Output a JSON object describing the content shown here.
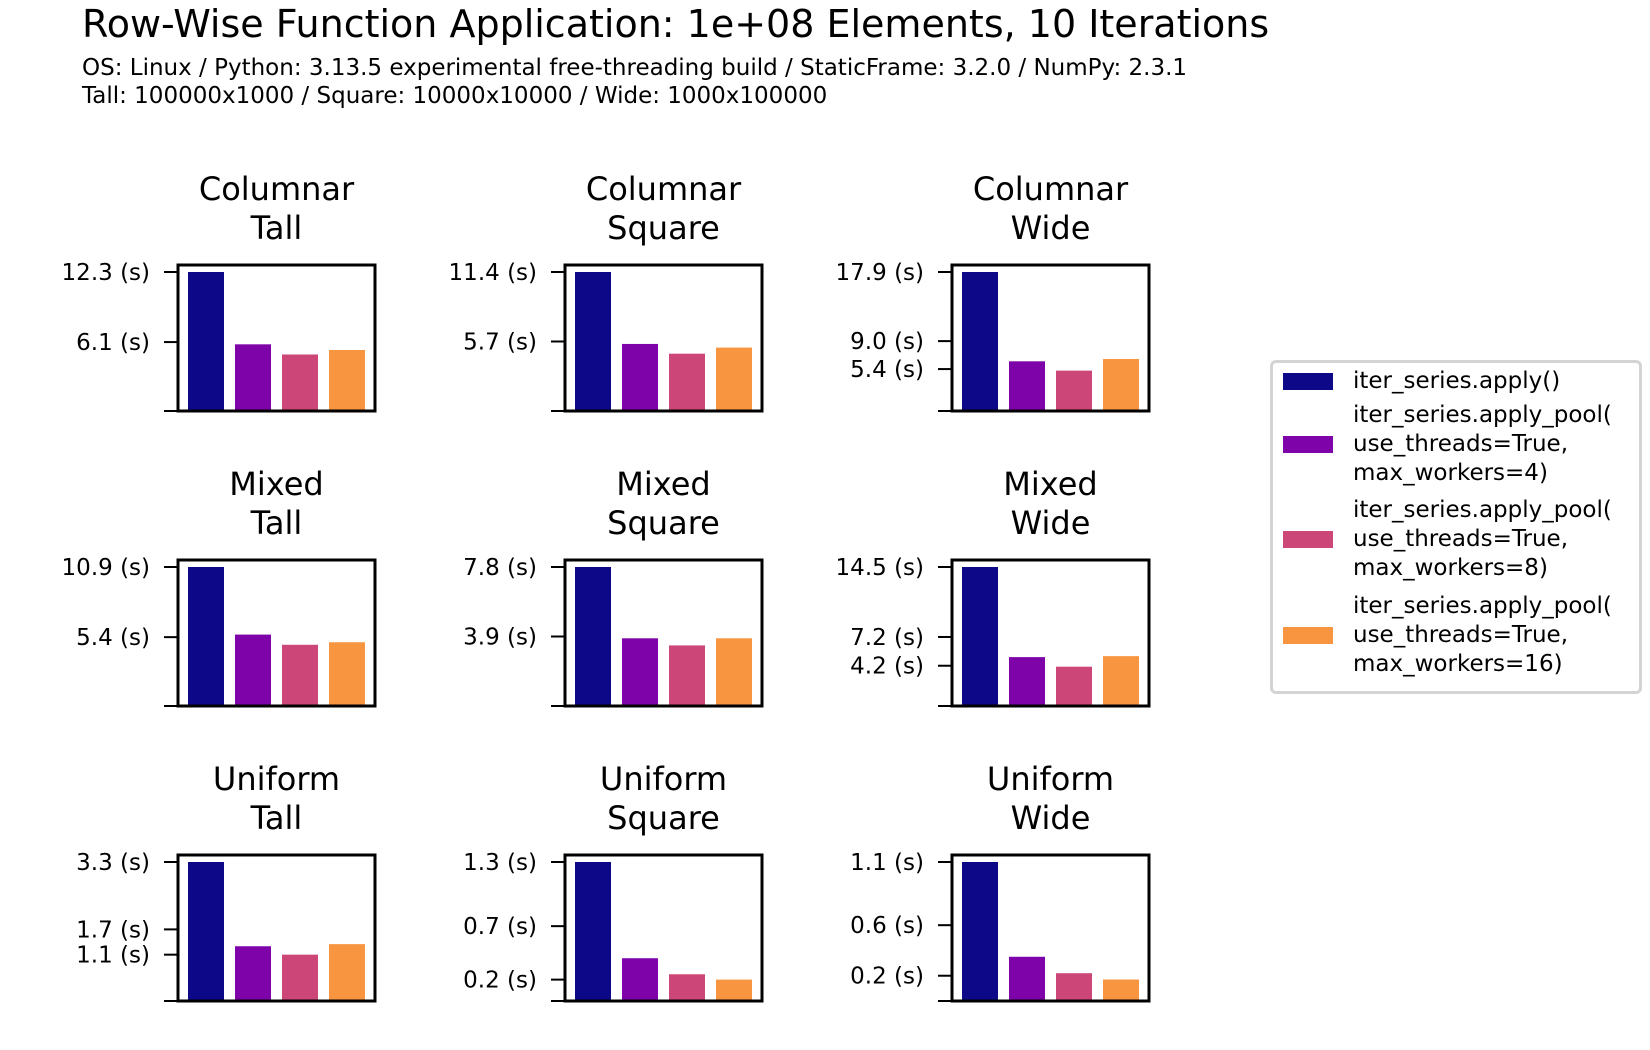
{
  "title": "Row-Wise Function Application: 1e+08 Elements, 10 Iterations",
  "subtitle_lines": [
    "OS: Linux / Python: 3.13.5 experimental free-threading build / StaticFrame: 3.2.0 / NumPy: 2.3.1",
    "Tall: 100000x1000 / Square: 10000x10000 / Wide: 1000x100000"
  ],
  "colors": [
    "#0d0887",
    "#7e03a8",
    "#cc4778",
    "#f89540"
  ],
  "legend": [
    {
      "label": "iter_series.apply()"
    },
    {
      "label": "iter_series.apply_pool(\nuse_threads=True,\nmax_workers=4)"
    },
    {
      "label": "iter_series.apply_pool(\nuse_threads=True,\nmax_workers=8)"
    },
    {
      "label": "iter_series.apply_pool(\nuse_threads=True,\nmax_workers=16)"
    }
  ],
  "chart_data": [
    {
      "type": "bar",
      "title": "Columnar\nTall",
      "series_values": [
        12.3,
        5.9,
        5.0,
        5.4
      ],
      "yticks": [
        12.3,
        6.1
      ],
      "ytick_labels": [
        "12.3 (s)",
        "6.1 (s)"
      ]
    },
    {
      "type": "bar",
      "title": "Columnar\nSquare",
      "series_values": [
        11.4,
        5.5,
        4.7,
        5.2
      ],
      "yticks": [
        11.4,
        5.7
      ],
      "ytick_labels": [
        "11.4 (s)",
        "5.7 (s)"
      ]
    },
    {
      "type": "bar",
      "title": "Columnar\nWide",
      "series_values": [
        17.9,
        6.4,
        5.2,
        6.7
      ],
      "yticks": [
        17.9,
        9.0,
        5.4
      ],
      "ytick_labels": [
        "17.9 (s)",
        "9.0 (s)",
        "5.4 (s)"
      ]
    },
    {
      "type": "bar",
      "title": "Mixed\nTall",
      "series_values": [
        10.9,
        5.6,
        4.8,
        5.0
      ],
      "yticks": [
        10.9,
        5.4
      ],
      "ytick_labels": [
        "10.9 (s)",
        "5.4 (s)"
      ]
    },
    {
      "type": "bar",
      "title": "Mixed\nSquare",
      "series_values": [
        7.8,
        3.8,
        3.4,
        3.8
      ],
      "yticks": [
        7.8,
        3.9
      ],
      "ytick_labels": [
        "7.8 (s)",
        "3.9 (s)"
      ]
    },
    {
      "type": "bar",
      "title": "Mixed\nWide",
      "series_values": [
        14.5,
        5.1,
        4.1,
        5.2
      ],
      "yticks": [
        14.5,
        7.2,
        4.2
      ],
      "ytick_labels": [
        "14.5 (s)",
        "7.2 (s)",
        "4.2 (s)"
      ]
    },
    {
      "type": "bar",
      "title": "Uniform\nTall",
      "series_values": [
        3.3,
        1.3,
        1.1,
        1.35
      ],
      "yticks": [
        3.3,
        1.7,
        1.1
      ],
      "ytick_labels": [
        "3.3 (s)",
        "1.7 (s)",
        "1.1 (s)"
      ]
    },
    {
      "type": "bar",
      "title": "Uniform\nSquare",
      "series_values": [
        1.3,
        0.4,
        0.25,
        0.2
      ],
      "yticks": [
        1.3,
        0.7,
        0.2
      ],
      "ytick_labels": [
        "1.3 (s)",
        "0.7 (s)",
        "0.2 (s)"
      ]
    },
    {
      "type": "bar",
      "title": "Uniform\nWide",
      "series_values": [
        1.1,
        0.35,
        0.22,
        0.17
      ],
      "yticks": [
        1.1,
        0.6,
        0.2
      ],
      "ytick_labels": [
        "1.1 (s)",
        "0.6 (s)",
        "0.2 (s)"
      ]
    }
  ]
}
